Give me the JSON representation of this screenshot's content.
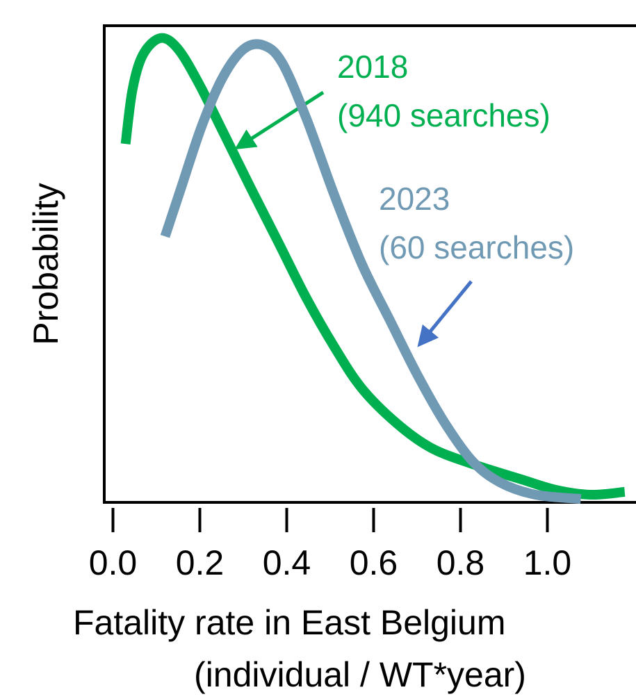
{
  "chart_data": {
    "type": "line",
    "x_label": [
      "Fatality rate in East Belgium",
      "(individual / WT*year)"
    ],
    "y_label": "Probability",
    "xlim": [
      -0.02,
      1.2
    ],
    "ylim": [
      0,
      1
    ],
    "xticks": [
      {
        "value": 0,
        "label": "0.0"
      },
      0.2,
      0.4,
      0.6,
      0.8,
      {
        "value": 1,
        "label": "1.0"
      }
    ],
    "series": [
      {
        "name": "2018",
        "color": "#00b050",
        "x": [
          0.029,
          0.045,
          0.069,
          0.109,
          0.149,
          0.197,
          0.253,
          0.317,
          0.381,
          0.445,
          0.509,
          0.573,
          0.653,
          0.733,
          0.829,
          0.941,
          1.021,
          1.101,
          1.178
        ],
        "values": [
          0.752,
          0.866,
          0.939,
          0.974,
          0.952,
          0.88,
          0.778,
          0.66,
          0.545,
          0.429,
          0.327,
          0.239,
          0.166,
          0.114,
          0.08,
          0.048,
          0.026,
          0.016,
          0.022
        ]
      },
      {
        "name": "2023",
        "color": "#7099b4",
        "x": [
          0.12,
          0.157,
          0.205,
          0.253,
          0.301,
          0.346,
          0.389,
          0.445,
          0.509,
          0.573,
          0.637,
          0.701,
          0.765,
          0.829,
          0.893,
          0.973,
          1.077
        ],
        "values": [
          0.558,
          0.66,
          0.791,
          0.892,
          0.951,
          0.959,
          0.923,
          0.806,
          0.646,
          0.5,
          0.383,
          0.267,
          0.165,
          0.085,
          0.041,
          0.016,
          0.007
        ]
      }
    ],
    "annotations": [
      {
        "text": [
          "2018",
          "(940 searches)"
        ],
        "color": "#00b050"
      },
      {
        "text": [
          "2023",
          "(60 searches)"
        ],
        "color": "#7099b4"
      }
    ]
  }
}
